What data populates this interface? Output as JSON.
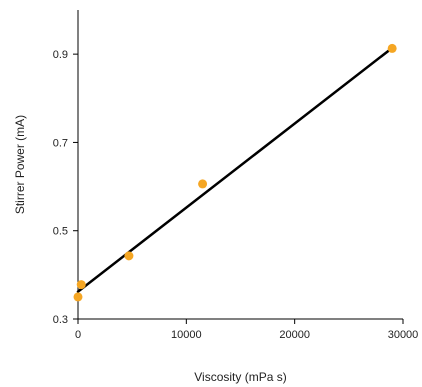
{
  "chart_data": {
    "type": "scatter",
    "title": "",
    "xlabel": "Viscosity (mPa s)",
    "ylabel": "Stirrer Power (mA)",
    "xlim": [
      0,
      30000
    ],
    "ylim": [
      0.3,
      1.0
    ],
    "xticks": [
      0,
      10000,
      20000,
      30000
    ],
    "xtick_labels": [
      "0",
      "10000",
      "20000",
      "30000"
    ],
    "yticks": [
      0.3,
      0.5,
      0.7,
      0.9
    ],
    "ytick_labels": [
      "0.3",
      "0.5",
      "0.7",
      "0.9"
    ],
    "grid": false,
    "legend": "none",
    "series": [
      {
        "marker_color": "#f5a623",
        "points": [
          {
            "x": 0,
            "y": 0.35
          },
          {
            "x": 300,
            "y": 0.378
          },
          {
            "x": 4700,
            "y": 0.443
          },
          {
            "x": 11500,
            "y": 0.606
          },
          {
            "x": 29000,
            "y": 0.913
          }
        ]
      }
    ],
    "trendline": {
      "color": "#000000",
      "x": [
        0,
        29000
      ],
      "y": [
        0.362,
        0.914
      ]
    }
  }
}
